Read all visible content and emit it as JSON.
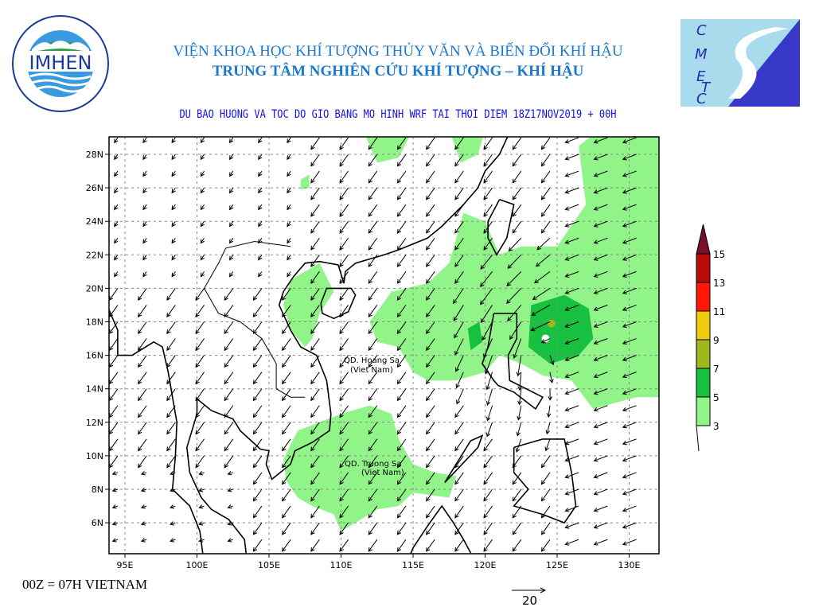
{
  "header": {
    "institute": "VIỆN KHOA HỌC KHÍ TƯỢNG THỦY VĂN VÀ BIẾN ĐỔI KHÍ HẬU",
    "center": "TRUNG TÂM NGHIÊN CỨU KHÍ TƯỢNG – KHÍ HẬU",
    "subtitle": "DU BAO HUONG VA TOC DO GIO BANG MO HINH WRF TAI THOI DIEM  18Z17NOV2019 + 00H"
  },
  "logos": {
    "left": "IMHEN",
    "left_ring": "VIEN KHOA HOC KHI TUONG THUY VAN VA BIEN DOI KHI HAU",
    "right": "CMETC"
  },
  "map": {
    "lon_ticks": [
      "95E",
      "100E",
      "105E",
      "110E",
      "115E",
      "120E",
      "125E",
      "130E"
    ],
    "lat_ticks": [
      "28N",
      "26N",
      "24N",
      "22N",
      "20N",
      "18N",
      "16N",
      "14N",
      "12N",
      "10N",
      "8N",
      "6N"
    ],
    "extent": {
      "lon": [
        94,
        132
      ],
      "lat": [
        4,
        29
      ]
    },
    "grid": "dashed",
    "labels": [
      {
        "text": "QD. Hoang Sa",
        "sub": "(Viet Nam)"
      },
      {
        "text": "QD. Truong Sa",
        "sub": "(Viet Nam)"
      }
    ]
  },
  "legend": {
    "levels": [
      "3",
      "5",
      "7",
      "9",
      "11",
      "13",
      "15"
    ],
    "colors": [
      "#90f488",
      "#18c040",
      "#a0b820",
      "#f0cc10",
      "#ff1808",
      "#b80c0a",
      "#78102c"
    ]
  },
  "reference_vector": {
    "value": "20"
  },
  "footer": "00Z = 07H VIETNAM"
}
